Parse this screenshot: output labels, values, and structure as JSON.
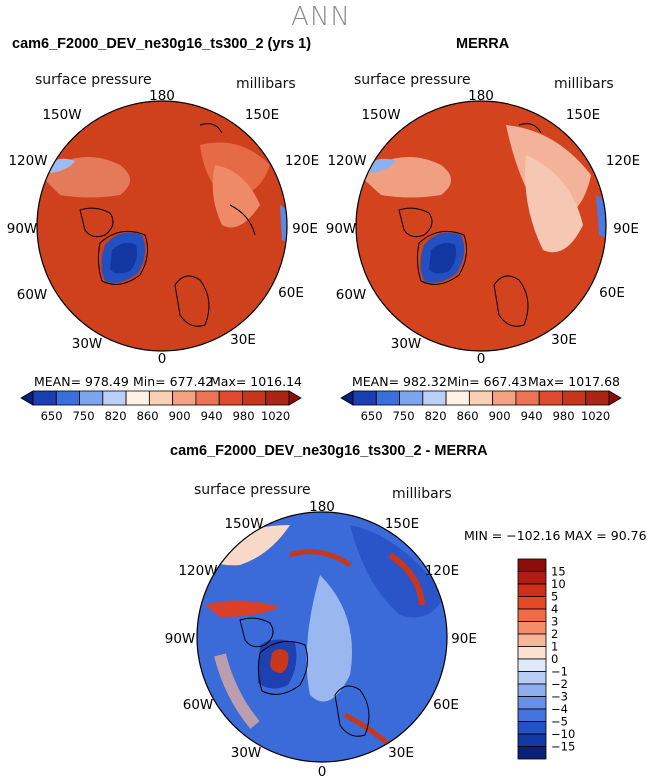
{
  "title": "ANN",
  "panels": [
    {
      "title": "cam6_F2000_DEV_ne30g16_ts300_2 (yrs 1)",
      "field_label": "surface pressure",
      "units": "millibars",
      "mean_text": "MEAN= 978.49",
      "min_text": "Min= 677.42",
      "max_text": "Max= 1016.14"
    },
    {
      "title": "MERRA",
      "field_label": "surface pressure",
      "units": "millibars",
      "mean_text": "MEAN= 982.32",
      "min_text": "Min= 667.43",
      "max_text": "Max= 1017.68"
    }
  ],
  "diff_panel": {
    "title": "cam6_F2000_DEV_ne30g16_ts300_2 - MERRA",
    "field_label": "surface pressure",
    "units": "millibars",
    "minmax_text": "MIN = −102.16 MAX =  90.76"
  },
  "longitude_labels": [
    "180",
    "150E",
    "120E",
    "90E",
    "60E",
    "30E",
    "0",
    "30W",
    "60W",
    "90W",
    "120W",
    "150W"
  ],
  "abs_colorbar": {
    "labels": [
      "650",
      "750",
      "820",
      "860",
      "900",
      "940",
      "980",
      "1020"
    ],
    "colors": [
      "#0a1e7a",
      "#1b3fb3",
      "#3c6fdc",
      "#7da4ee",
      "#bcd0f7",
      "#fef2e4",
      "#fbd0b3",
      "#f5a283",
      "#ee7356",
      "#e14a2e",
      "#c8351c",
      "#aa2515",
      "#8a0e0a"
    ]
  },
  "diff_colorbar": {
    "labels": [
      "15",
      "10",
      "5",
      "4",
      "3",
      "2",
      "1",
      "0",
      "−1",
      "−2",
      "−3",
      "−4",
      "−5",
      "−10",
      "−15"
    ],
    "colors": [
      "#8a0e0a",
      "#b01d12",
      "#cf2f18",
      "#e24a26",
      "#ef6a45",
      "#f58d6a",
      "#f9b597",
      "#fde2d2",
      "#dfe9f9",
      "#b8cdf4",
      "#8eaeee",
      "#6a91e6",
      "#4674de",
      "#2451c7",
      "#133aa3",
      "#0a2178"
    ]
  },
  "colors": {
    "land_fill": "#d84a22",
    "land_dark": "#c93d1b",
    "greenland": "#2250c0",
    "diff_bg": "#3b6ad9"
  }
}
